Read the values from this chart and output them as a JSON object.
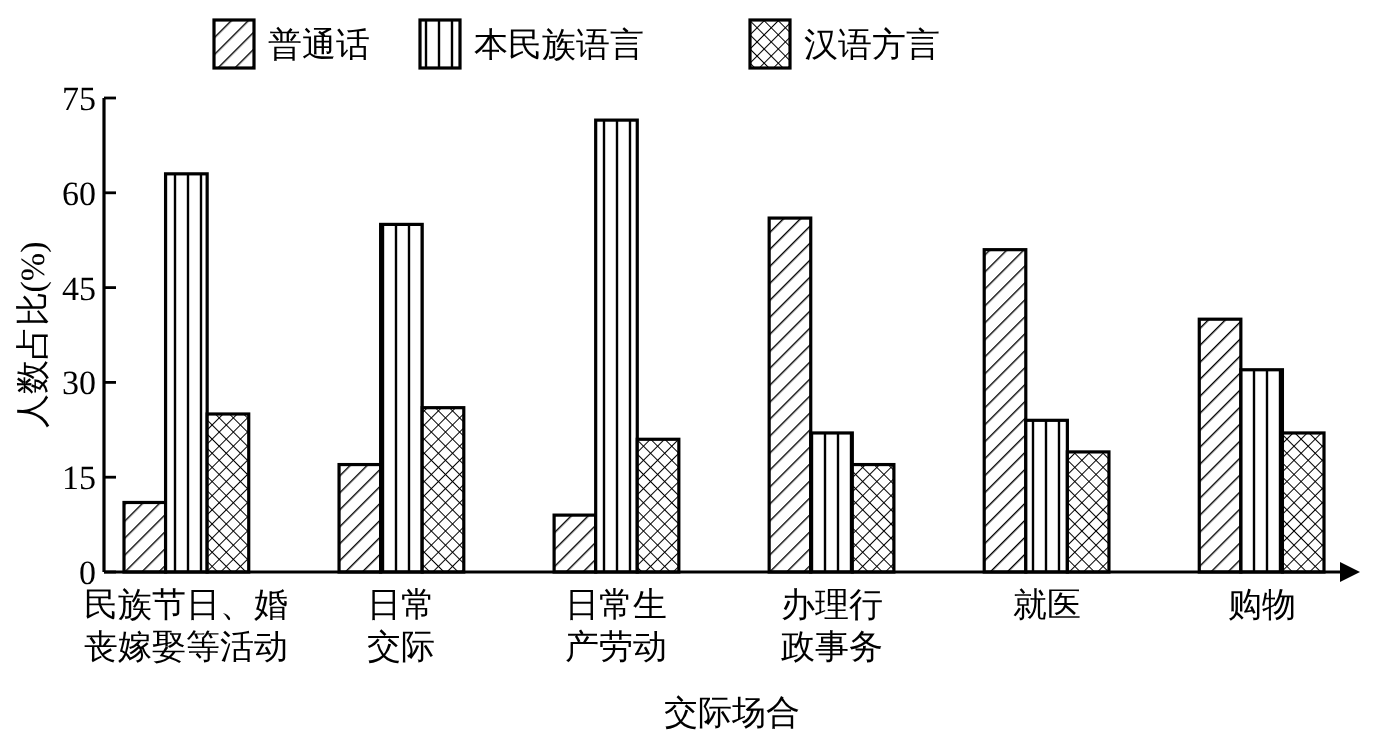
{
  "chart_data": {
    "type": "bar",
    "xlabel": "交际场合",
    "ylabel": "人数占比(%)",
    "categories": [
      "民族节日、婚丧嫁娶等活动",
      "日常交际",
      "日常生产劳动",
      "办理行政事务",
      "就医",
      "购物"
    ],
    "series": [
      {
        "name": "普通话",
        "color": "#000000",
        "values": [
          11,
          17,
          9,
          56,
          51,
          40
        ]
      },
      {
        "name": "本民族语言",
        "color": "#000000",
        "values": [
          63,
          55,
          71.5,
          22,
          24,
          32
        ]
      },
      {
        "name": "汉语方言",
        "color": "#000000",
        "values": [
          25,
          26,
          21,
          17,
          19,
          22
        ]
      }
    ],
    "ylim": [
      0,
      75
    ],
    "yticks": [
      0,
      15,
      30,
      45,
      60,
      75
    ],
    "grid": false,
    "legend": "top"
  }
}
